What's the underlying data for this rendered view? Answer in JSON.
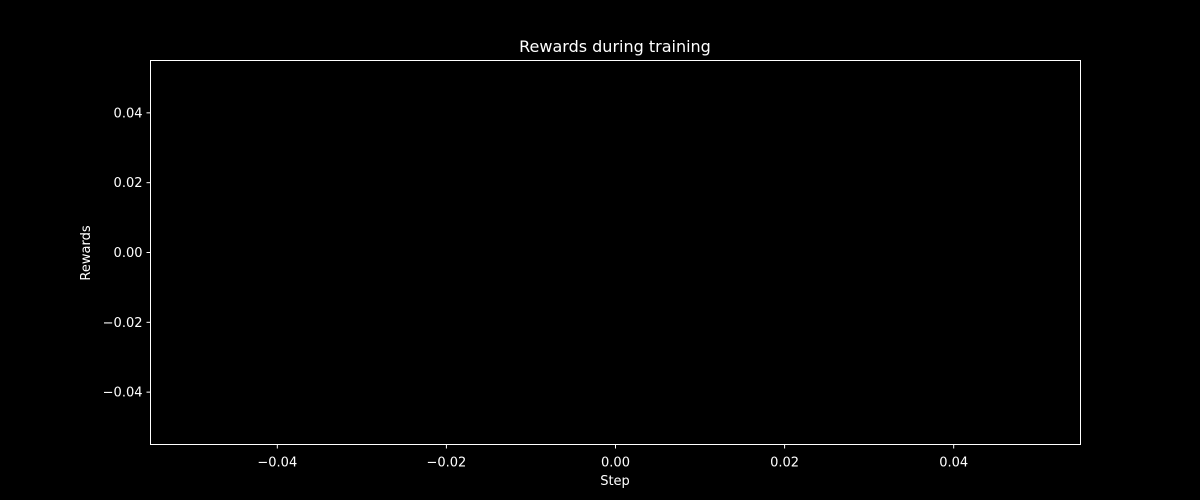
{
  "chart_data": {
    "type": "line",
    "title": "Rewards during training",
    "xlabel": "Step",
    "ylabel": "Rewards",
    "xlim": [
      -0.055,
      0.055
    ],
    "ylim": [
      -0.055,
      0.055
    ],
    "x_ticks": [
      -0.04,
      -0.02,
      0.0,
      0.02,
      0.04
    ],
    "y_ticks": [
      -0.04,
      -0.02,
      0.0,
      0.02,
      0.04
    ],
    "x_tick_labels": [
      "−0.04",
      "−0.02",
      "0.00",
      "0.02",
      "0.04"
    ],
    "y_tick_labels": [
      "−0.04",
      "−0.02",
      "0.00",
      "0.02",
      "0.04"
    ],
    "series": [],
    "grid": false,
    "colors": {
      "background": "#000000",
      "foreground": "#ffffff"
    }
  }
}
